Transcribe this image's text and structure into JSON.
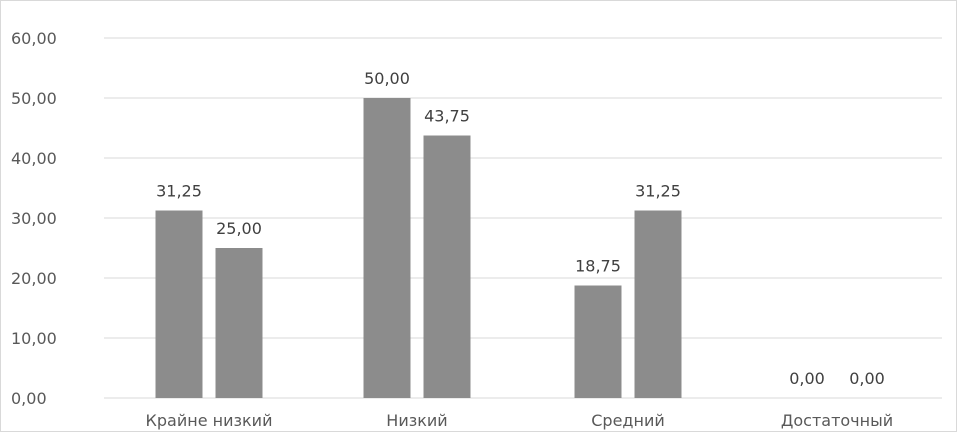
{
  "chart_data": {
    "type": "bar",
    "categories": [
      "Крайне низкий",
      "Низкий",
      "Средний",
      "Достаточный"
    ],
    "series": [
      {
        "values": [
          31.25,
          50.0,
          18.75,
          0.0
        ]
      },
      {
        "values": [
          25.0,
          43.75,
          31.25,
          0.0
        ]
      }
    ],
    "data_labels": [
      [
        "31,25",
        "50,00",
        "18,75",
        "0,00"
      ],
      [
        "25,00",
        "43,75",
        "31,25",
        "0,00"
      ]
    ],
    "y_ticks": [
      "0,00",
      "10,00",
      "20,00",
      "30,00",
      "40,00",
      "50,00",
      "60,00"
    ],
    "ylim": [
      0,
      60
    ],
    "grid": true,
    "legend": "none",
    "colors": {
      "bar": "#8c8c8c",
      "grid": "#d9d9d9",
      "text": "#595959"
    }
  }
}
